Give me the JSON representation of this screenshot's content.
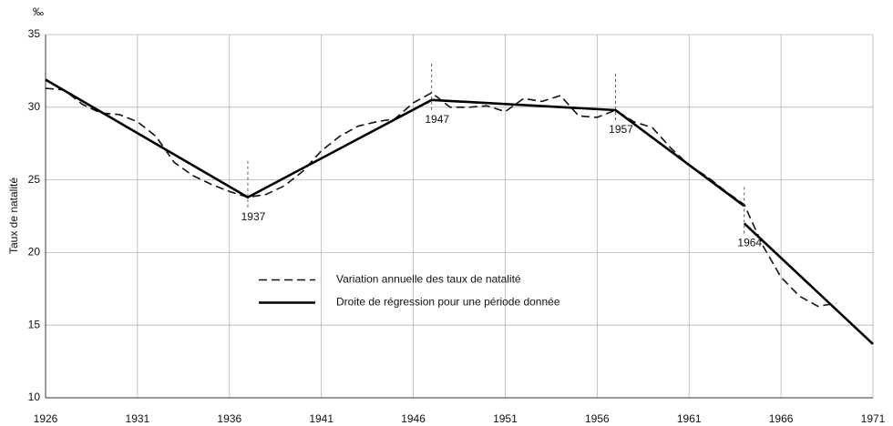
{
  "chart_data": {
    "type": "line",
    "y_unit": "‰",
    "ylabel": "Taux de natalité",
    "xlim": [
      1926,
      1971
    ],
    "xticks": [
      1926,
      1931,
      1936,
      1941,
      1946,
      1951,
      1956,
      1961,
      1966,
      1971
    ],
    "ylim": [
      10,
      35
    ],
    "yticks": [
      10,
      15,
      20,
      25,
      30,
      35
    ],
    "grid": true,
    "legend": "center",
    "series": [
      {
        "name": "Variation annuelle des taux de natalité",
        "color": "#111111",
        "style": "dashed",
        "x": [
          1926,
          1927,
          1928,
          1929,
          1930,
          1931,
          1932,
          1933,
          1934,
          1935,
          1936,
          1937,
          1938,
          1939,
          1940,
          1941,
          1942,
          1943,
          1944,
          1945,
          1946,
          1947,
          1948,
          1949,
          1950,
          1951,
          1952,
          1953,
          1954,
          1955,
          1956,
          1957,
          1958,
          1959,
          1960,
          1961,
          1962,
          1963,
          1964,
          1965,
          1966,
          1967,
          1968,
          1969
        ],
        "values": [
          31.3,
          31.2,
          30.2,
          29.6,
          29.5,
          29.0,
          28.0,
          26.2,
          25.3,
          24.7,
          24.2,
          23.8,
          24.0,
          24.6,
          25.6,
          27.0,
          28.0,
          28.7,
          29.0,
          29.2,
          30.3,
          31.0,
          30.0,
          30.0,
          30.1,
          29.7,
          30.6,
          30.4,
          30.8,
          29.4,
          29.3,
          29.8,
          29.0,
          28.6,
          27.2,
          26.0,
          25.2,
          24.2,
          23.3,
          20.5,
          18.3,
          17.0,
          16.3,
          16.5
        ]
      },
      {
        "name": "Droite de régression pour une période donnée",
        "color": "#000000",
        "style": "solid",
        "x": [
          1926,
          1937,
          1947,
          1957,
          1964,
          null,
          1964,
          1971
        ],
        "values": [
          31.9,
          23.8,
          30.5,
          29.8,
          23.2,
          null,
          22.0,
          13.7
        ]
      }
    ],
    "annotations": [
      {
        "text": "1937",
        "x": 1937,
        "y": 23.8
      },
      {
        "text": "1947",
        "x": 1947,
        "y": 30.5
      },
      {
        "text": "1957",
        "x": 1957,
        "y": 29.8
      },
      {
        "text": "1964",
        "x": 1964,
        "y": 22.0
      }
    ]
  }
}
